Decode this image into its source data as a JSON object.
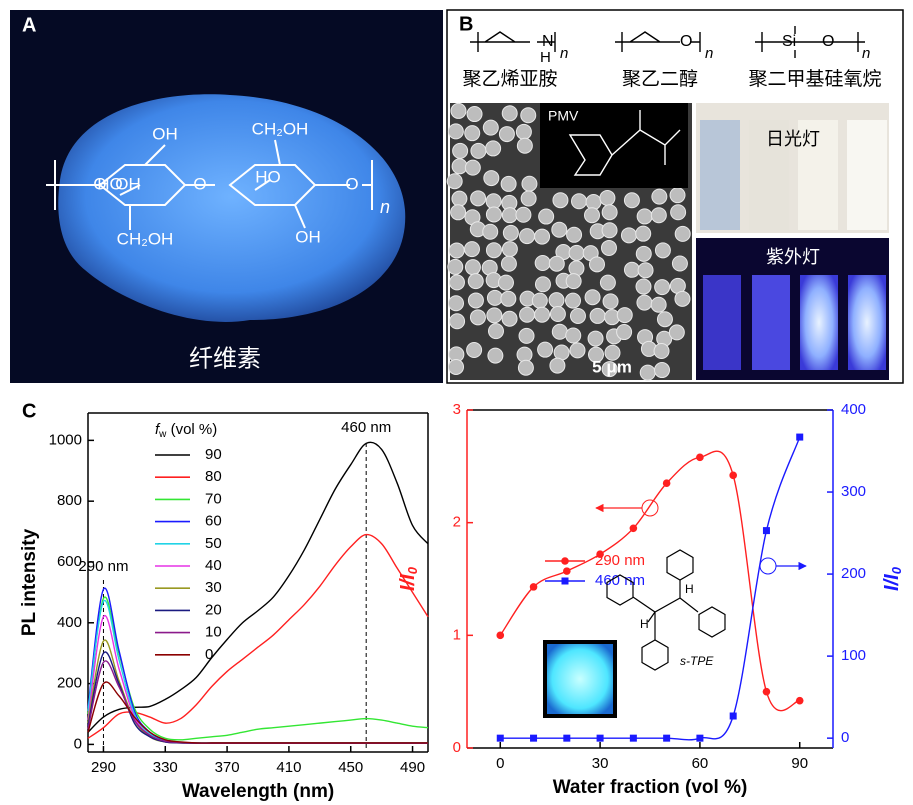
{
  "panels": {
    "A": {
      "label": "A",
      "caption": "纤维素",
      "structure_labels": [
        "OH",
        "HO",
        "OH",
        "CH₂OH",
        "CH₂OH",
        "HO",
        "OH",
        "O",
        "O",
        "O",
        "n"
      ]
    },
    "B": {
      "label": "B",
      "polymers": [
        {
          "name": "聚乙烯亚胺",
          "atoms": [
            "N",
            "H",
            "n"
          ]
        },
        {
          "name": "聚乙二醇",
          "atoms": [
            "O",
            "n"
          ]
        },
        {
          "name": "聚二甲基硅氧烷",
          "atoms": [
            "Si",
            "O",
            "n"
          ]
        }
      ],
      "inset_label": "PMV",
      "scale_bar": "5 μm",
      "daylight": "日光灯",
      "uv_light": "紫外灯"
    },
    "C": {
      "label": "C"
    }
  },
  "chart_data": [
    {
      "type": "line",
      "xlabel": "Wavelength (nm)",
      "ylabel": "PL intensity",
      "legend_title": [
        "f",
        "w",
        " (vol %)"
      ],
      "x": [
        280,
        290,
        300,
        310,
        320,
        330,
        340,
        350,
        360,
        370,
        380,
        390,
        400,
        410,
        420,
        430,
        440,
        450,
        460,
        470,
        480,
        490,
        500
      ],
      "xlim": [
        280,
        500
      ],
      "xticks": [
        290,
        330,
        370,
        410,
        450,
        490
      ],
      "ylim": [
        -25,
        1090
      ],
      "yticks": [
        0,
        200,
        400,
        600,
        800,
        1000
      ],
      "markers": [
        {
          "value": 290,
          "label": "290 nm"
        },
        {
          "value": 460,
          "label": "460 nm"
        }
      ],
      "series": [
        {
          "name": "90",
          "color": "#000000",
          "values": [
            40,
            90,
            115,
            122,
            125,
            148,
            180,
            220,
            285,
            345,
            400,
            440,
            485,
            555,
            640,
            740,
            840,
            920,
            990,
            970,
            860,
            720,
            660
          ]
        },
        {
          "name": "80",
          "color": "#ff2020",
          "values": [
            20,
            55,
            100,
            105,
            90,
            70,
            85,
            130,
            190,
            240,
            280,
            320,
            360,
            410,
            460,
            520,
            590,
            650,
            690,
            660,
            580,
            500,
            420
          ]
        },
        {
          "name": "70",
          "color": "#33e633",
          "values": [
            100,
            480,
            300,
            120,
            50,
            20,
            15,
            20,
            25,
            30,
            40,
            50,
            55,
            60,
            65,
            70,
            75,
            80,
            85,
            80,
            70,
            60,
            55
          ]
        },
        {
          "name": "60",
          "color": "#1a1aff",
          "values": [
            120,
            510,
            310,
            110,
            40,
            10,
            6,
            5,
            5,
            5,
            5,
            5,
            5,
            5,
            5,
            5,
            5,
            5,
            5,
            5,
            5,
            5,
            5
          ]
        },
        {
          "name": "50",
          "color": "#22d3e6",
          "values": [
            110,
            470,
            280,
            100,
            35,
            10,
            6,
            5,
            5,
            5,
            5,
            5,
            5,
            5,
            5,
            5,
            5,
            5,
            5,
            5,
            5,
            5,
            5
          ]
        },
        {
          "name": "40",
          "color": "#e633e6",
          "values": [
            80,
            420,
            250,
            90,
            30,
            8,
            5,
            4,
            4,
            4,
            4,
            4,
            4,
            4,
            4,
            4,
            4,
            4,
            4,
            4,
            4,
            4,
            4
          ]
        },
        {
          "name": "30",
          "color": "#999922",
          "values": [
            70,
            340,
            210,
            80,
            25,
            8,
            5,
            4,
            4,
            4,
            4,
            4,
            4,
            4,
            4,
            4,
            4,
            4,
            4,
            4,
            4,
            4,
            4
          ]
        },
        {
          "name": "20",
          "color": "#1a1a80",
          "values": [
            60,
            300,
            200,
            70,
            25,
            8,
            5,
            4,
            4,
            4,
            4,
            4,
            4,
            4,
            4,
            4,
            4,
            4,
            4,
            4,
            4,
            4,
            4
          ]
        },
        {
          "name": "10",
          "color": "#8b1a8b",
          "values": [
            50,
            270,
            190,
            80,
            30,
            10,
            6,
            4,
            4,
            4,
            4,
            4,
            4,
            4,
            4,
            4,
            4,
            4,
            4,
            4,
            4,
            4,
            4
          ]
        },
        {
          "name": "0",
          "color": "#8b0000",
          "values": [
            40,
            200,
            160,
            90,
            40,
            15,
            8,
            5,
            5,
            5,
            5,
            5,
            5,
            5,
            5,
            5,
            5,
            5,
            5,
            5,
            5,
            5,
            5
          ]
        }
      ]
    },
    {
      "type": "line",
      "xlabel": "Water fraction (vol %)",
      "ylabel": [
        "I/I",
        "0"
      ],
      "y2label": [
        "I/I",
        "0"
      ],
      "x": [
        0,
        10,
        20,
        30,
        40,
        50,
        60,
        70,
        80,
        90
      ],
      "xlim": [
        -10,
        100
      ],
      "xticks": [
        0,
        30,
        60,
        90
      ],
      "ylim": [
        0,
        3
      ],
      "yticks": [
        0,
        1,
        2,
        3
      ],
      "y2lim": [
        -12,
        400
      ],
      "y2ticks": [
        0,
        100,
        200,
        300,
        400
      ],
      "molecule": [
        "H",
        "H",
        "s-TPE"
      ],
      "series": [
        {
          "name": "290 nm",
          "color": "#ff2020",
          "marker": "circle",
          "values": [
            1.0,
            1.43,
            1.57,
            1.72,
            1.95,
            2.35,
            2.58,
            2.42,
            0.5,
            0.42
          ]
        },
        {
          "name": "460 nm",
          "color": "#1a1aff",
          "marker": "square",
          "axis": "y2",
          "values": [
            0,
            0,
            0,
            0,
            0,
            0,
            0,
            27,
            253,
            367
          ]
        }
      ]
    }
  ]
}
